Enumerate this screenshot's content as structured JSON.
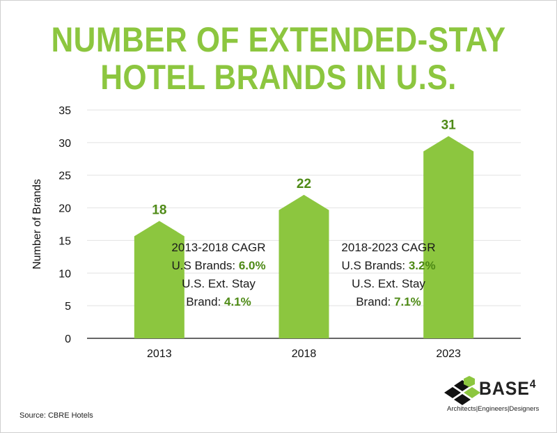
{
  "title_lines": [
    "NUMBER OF EXTENDED-STAY",
    "HOTEL BRANDS IN U.S."
  ],
  "colors": {
    "bar": "#8cc63f",
    "value_label": "#4e8a16",
    "axis": "#333333",
    "grid": "#e2e2e2"
  },
  "annotations": [
    {
      "l1": "2013-2018 CAGR",
      "l2_prefix": "U.S Brands: ",
      "l2_value": "6.0%",
      "l3": "U.S. Ext. Stay",
      "l4_prefix": "Brand: ",
      "l4_value": "4.1%"
    },
    {
      "l1": "2018-2023 CAGR",
      "l2_prefix": "U.S Brands: ",
      "l2_value": "3.2%",
      "l3": "U.S. Ext. Stay",
      "l4_prefix": "Brand: ",
      "l4_value": "7.1%"
    }
  ],
  "source": "Source: CBRE Hotels",
  "logo": {
    "name": "BASE",
    "superscript": "4",
    "tagline": "Architects|Engineers|Designers",
    "icon": "cube-grid-logo-icon"
  },
  "chart_data": {
    "type": "bar",
    "categories": [
      "2013",
      "2018",
      "2023"
    ],
    "values": [
      18,
      22,
      31
    ],
    "ylabel": "Number of Brands",
    "ylim": [
      0,
      35
    ],
    "yticks": [
      0,
      5,
      10,
      15,
      20,
      25,
      30,
      35
    ],
    "grid": true,
    "bar_shape": "arrow-top"
  }
}
